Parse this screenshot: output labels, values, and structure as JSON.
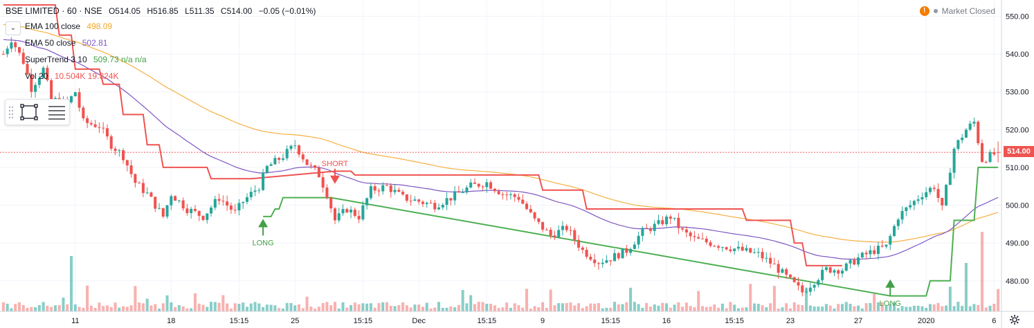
{
  "header": {
    "symbol": "BSE LIMITED · 60 · NSE",
    "open": "O514.05",
    "high": "H516.85",
    "low": "L511.35",
    "close": "C514.00",
    "change": "−0.05 (−0.01%)"
  },
  "indicators": [
    {
      "name": "EMA 100 close",
      "value": "498.09",
      "color": "#f5a623"
    },
    {
      "name": "EMA 50 close",
      "value": "502.81",
      "color": "#7e57c2"
    },
    {
      "name": "SuperTrend 3 10",
      "value": "509.73 n/a n/a",
      "color": "#43a047"
    },
    {
      "name": "Vol 20",
      "value": "10.504K 19.324K",
      "color": "#ef5350"
    }
  ],
  "market_status": "Market Closed",
  "last_price": "514.00",
  "annotations": [
    {
      "label": "LONG",
      "bar": 65,
      "kind": "long",
      "price": 496
    },
    {
      "label": "SHORT",
      "bar": 83,
      "kind": "short",
      "price": 506
    },
    {
      "label": "LONG",
      "bar": 222,
      "kind": "long",
      "price": 480
    }
  ],
  "chart_data": {
    "type": "candlestick",
    "y_axis_ticks": [
      480,
      490,
      500,
      510,
      520,
      530,
      540,
      550
    ],
    "ylim": [
      471.9,
      554.3
    ],
    "x_axis_labels": [
      {
        "bar": 18,
        "label": "11"
      },
      {
        "bar": 42,
        "label": "18"
      },
      {
        "bar": 59,
        "label": "15:15"
      },
      {
        "bar": 73,
        "label": "25"
      },
      {
        "bar": 90,
        "label": "15:15"
      },
      {
        "bar": 104,
        "label": "Dec"
      },
      {
        "bar": 121,
        "label": "15:15"
      },
      {
        "bar": 135,
        "label": "9"
      },
      {
        "bar": 152,
        "label": "15:15"
      },
      {
        "bar": 166,
        "label": "16"
      },
      {
        "bar": 183,
        "label": "15:15"
      },
      {
        "bar": 197,
        "label": "23"
      },
      {
        "bar": 214,
        "label": "27"
      },
      {
        "bar": 231,
        "label": "2020"
      },
      {
        "bar": 248,
        "label": "6"
      }
    ],
    "close_anchors": [
      [
        0,
        540
      ],
      [
        2,
        544
      ],
      [
        5,
        538
      ],
      [
        7,
        531
      ],
      [
        10,
        536
      ],
      [
        12,
        528
      ],
      [
        16,
        527
      ],
      [
        18,
        530
      ],
      [
        20,
        522
      ],
      [
        24,
        521
      ],
      [
        27,
        516
      ],
      [
        30,
        513
      ],
      [
        33,
        506
      ],
      [
        36,
        503
      ],
      [
        40,
        497
      ],
      [
        42,
        503
      ],
      [
        46,
        499
      ],
      [
        50,
        497
      ],
      [
        54,
        502
      ],
      [
        58,
        498
      ],
      [
        60,
        501
      ],
      [
        64,
        505
      ],
      [
        66,
        510
      ],
      [
        70,
        513
      ],
      [
        73,
        516
      ],
      [
        76,
        511
      ],
      [
        79,
        508
      ],
      [
        81,
        503
      ],
      [
        83,
        496
      ],
      [
        86,
        499
      ],
      [
        89,
        497
      ],
      [
        92,
        504
      ],
      [
        96,
        505
      ],
      [
        100,
        502
      ],
      [
        104,
        501
      ],
      [
        108,
        500
      ],
      [
        112,
        502
      ],
      [
        117,
        505
      ],
      [
        121,
        506
      ],
      [
        125,
        503
      ],
      [
        129,
        502
      ],
      [
        133,
        496
      ],
      [
        137,
        492
      ],
      [
        141,
        494
      ],
      [
        145,
        488
      ],
      [
        149,
        485
      ],
      [
        152,
        486
      ],
      [
        156,
        488
      ],
      [
        160,
        493
      ],
      [
        164,
        495
      ],
      [
        167,
        497
      ],
      [
        170,
        493
      ],
      [
        173,
        491
      ],
      [
        177,
        490
      ],
      [
        181,
        489
      ],
      [
        185,
        488
      ],
      [
        189,
        487
      ],
      [
        193,
        484
      ],
      [
        197,
        480
      ],
      [
        200,
        477
      ],
      [
        203,
        480
      ],
      [
        206,
        483
      ],
      [
        210,
        483
      ],
      [
        214,
        486
      ],
      [
        218,
        488
      ],
      [
        221,
        489
      ],
      [
        224,
        497
      ],
      [
        227,
        500
      ],
      [
        230,
        503
      ],
      [
        233,
        505
      ],
      [
        235,
        499
      ],
      [
        238,
        515
      ],
      [
        241,
        520
      ],
      [
        243,
        522
      ],
      [
        245,
        512
      ],
      [
        247,
        513
      ],
      [
        249,
        514
      ]
    ],
    "series": [
      {
        "name": "EMA 100 close",
        "last": 498.09
      },
      {
        "name": "EMA 50 close",
        "last": 502.81
      },
      {
        "name": "SuperTrend 3 10",
        "last": 509.73
      },
      {
        "name": "Vol 20",
        "last": "10.504K"
      }
    ]
  }
}
